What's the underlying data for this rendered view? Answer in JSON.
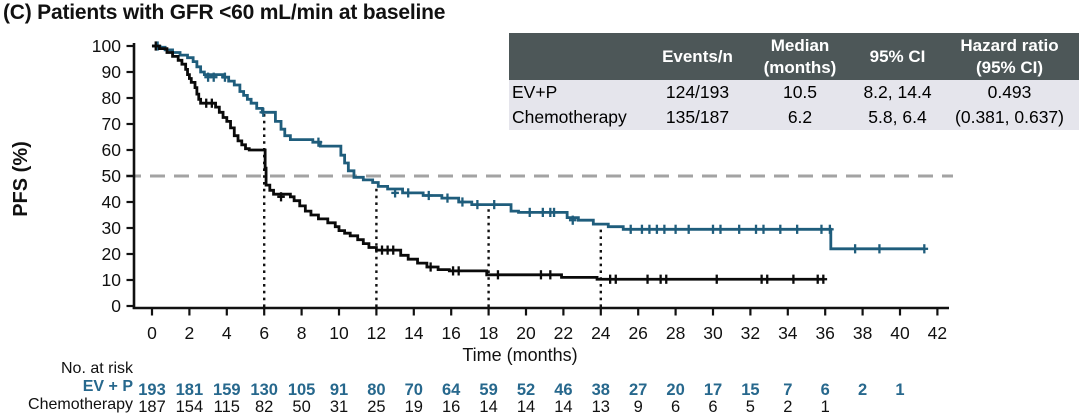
{
  "title": "(C) Patients with GFR <60 mL/min at baseline",
  "colors": {
    "evp_curve": "#1f5d7c",
    "evp_text": "#27688d",
    "chemo_curve": "#0a0a0a",
    "table_header_bg": "#4d5758",
    "table_row_bg": "#e5e5ec",
    "dashed_reference": "#a3a3a3",
    "axis": "#111111"
  },
  "stats_table": {
    "headers": {
      "label": "",
      "events": "Events/n",
      "median": "Median\n(months)",
      "ci": "95% CI",
      "hr": "Hazard ratio\n(95% CI)"
    },
    "rows": [
      {
        "label": "EV+P",
        "events": "124/193",
        "median": "10.5",
        "ci": "8.2, 14.4",
        "hr": "0.493"
      },
      {
        "label": "Chemotherapy",
        "events": "135/187",
        "median": "6.2",
        "ci": "5.8, 6.4",
        "hr": "(0.381, 0.637)"
      }
    ]
  },
  "chart_data": {
    "type": "line",
    "subtype": "kaplan-meier-step",
    "title": "(C) Patients with GFR <60 mL/min at baseline",
    "xlabel": "Time (months)",
    "ylabel": "PFS (%)",
    "xlim": [
      0,
      42
    ],
    "ylim": [
      0,
      100
    ],
    "xtick_step": 2,
    "ytick_step": 10,
    "grid": false,
    "reference_lines": {
      "horizontal_dashed_y": 50,
      "vertical_dotted": [
        [
          6,
          74.5
        ],
        [
          12,
          46
        ],
        [
          18,
          39
        ],
        [
          24,
          31.5
        ]
      ]
    },
    "series": [
      {
        "name": "EV+P",
        "color": "#1f5d7c",
        "median_months": 10.5,
        "steps": [
          [
            0,
            100
          ],
          [
            0.3,
            99.5
          ],
          [
            0.7,
            98.5
          ],
          [
            1.1,
            97.5
          ],
          [
            1.5,
            96.5
          ],
          [
            1.9,
            95.5
          ],
          [
            2.2,
            94
          ],
          [
            2.4,
            92
          ],
          [
            2.6,
            90
          ],
          [
            2.8,
            89
          ],
          [
            3.8,
            88
          ],
          [
            4.1,
            86.5
          ],
          [
            4.4,
            85
          ],
          [
            4.7,
            82.5
          ],
          [
            4.9,
            81
          ],
          [
            5.1,
            79.5
          ],
          [
            5.3,
            78
          ],
          [
            5.6,
            76
          ],
          [
            5.9,
            74.5
          ],
          [
            6.6,
            71
          ],
          [
            6.9,
            68
          ],
          [
            7.1,
            65.5
          ],
          [
            7.4,
            64
          ],
          [
            8.6,
            63
          ],
          [
            9.0,
            61.5
          ],
          [
            10.1,
            58
          ],
          [
            10.3,
            55
          ],
          [
            10.5,
            52
          ],
          [
            10.8,
            49.5
          ],
          [
            11.3,
            48.5
          ],
          [
            11.8,
            47.5
          ],
          [
            12.1,
            46
          ],
          [
            12.6,
            45
          ],
          [
            13.4,
            43.5
          ],
          [
            14.5,
            42.5
          ],
          [
            15.5,
            41.5
          ],
          [
            16.4,
            40
          ],
          [
            17.1,
            39
          ],
          [
            19.2,
            36.5
          ],
          [
            19.6,
            36
          ],
          [
            22.2,
            34
          ],
          [
            22.8,
            33
          ],
          [
            23.6,
            31.5
          ],
          [
            24.4,
            30.5
          ],
          [
            25.2,
            29.5
          ],
          [
            36.3,
            22
          ],
          [
            41.3,
            22
          ]
        ],
        "censors": [
          [
            0.3,
            100
          ],
          [
            3.0,
            88
          ],
          [
            3.3,
            88
          ],
          [
            3.9,
            88
          ],
          [
            5.95,
            74.5
          ],
          [
            8.9,
            63
          ],
          [
            13.0,
            43.5
          ],
          [
            13.7,
            43.5
          ],
          [
            14.8,
            42.5
          ],
          [
            15.8,
            41.5
          ],
          [
            16.6,
            40
          ],
          [
            17.4,
            39
          ],
          [
            18.3,
            39
          ],
          [
            20.2,
            36
          ],
          [
            20.9,
            36
          ],
          [
            21.3,
            36
          ],
          [
            21.5,
            36
          ],
          [
            22.5,
            33
          ],
          [
            25.6,
            29.5
          ],
          [
            26.2,
            29.5
          ],
          [
            26.6,
            29.5
          ],
          [
            27.0,
            29.5
          ],
          [
            27.4,
            29.5
          ],
          [
            28.0,
            29.5
          ],
          [
            28.7,
            29.5
          ],
          [
            30.0,
            29.5
          ],
          [
            30.4,
            29.5
          ],
          [
            31.4,
            29.5
          ],
          [
            32.3,
            29.5
          ],
          [
            32.7,
            29.5
          ],
          [
            33.6,
            29.5
          ],
          [
            34.5,
            29.5
          ],
          [
            35.8,
            29.5
          ],
          [
            36.25,
            29.5
          ],
          [
            37.6,
            22
          ],
          [
            38.9,
            22
          ],
          [
            41.3,
            22
          ]
        ]
      },
      {
        "name": "Chemotherapy",
        "color": "#0a0a0a",
        "median_months": 6.2,
        "steps": [
          [
            0,
            100
          ],
          [
            0.4,
            99
          ],
          [
            0.8,
            97.5
          ],
          [
            1.1,
            96
          ],
          [
            1.4,
            94.5
          ],
          [
            1.6,
            93
          ],
          [
            1.8,
            91
          ],
          [
            1.9,
            89
          ],
          [
            2.0,
            87.5
          ],
          [
            2.1,
            86
          ],
          [
            2.3,
            84
          ],
          [
            2.4,
            81.5
          ],
          [
            2.5,
            79.5
          ],
          [
            2.6,
            78
          ],
          [
            3.4,
            76.5
          ],
          [
            3.6,
            74.5
          ],
          [
            3.8,
            72.5
          ],
          [
            4.0,
            71
          ],
          [
            4.2,
            68.5
          ],
          [
            4.4,
            65.5
          ],
          [
            4.6,
            63.5
          ],
          [
            4.8,
            62
          ],
          [
            5.0,
            60.5
          ],
          [
            5.2,
            60
          ],
          [
            6.05,
            53
          ],
          [
            6.1,
            46.5
          ],
          [
            6.3,
            44.5
          ],
          [
            6.5,
            43
          ],
          [
            7.4,
            42
          ],
          [
            7.6,
            40.5
          ],
          [
            7.9,
            38.5
          ],
          [
            8.2,
            36.5
          ],
          [
            8.5,
            35
          ],
          [
            8.9,
            33.5
          ],
          [
            9.4,
            32
          ],
          [
            9.8,
            30.5
          ],
          [
            10.0,
            29
          ],
          [
            10.3,
            28
          ],
          [
            10.6,
            27
          ],
          [
            11.0,
            25.5
          ],
          [
            11.3,
            24
          ],
          [
            11.6,
            22.5
          ],
          [
            12.0,
            21.5
          ],
          [
            13.3,
            19.5
          ],
          [
            13.7,
            18
          ],
          [
            14.2,
            16.5
          ],
          [
            14.7,
            15
          ],
          [
            15.3,
            14
          ],
          [
            15.9,
            13.5
          ],
          [
            17.9,
            12
          ],
          [
            21.9,
            11
          ],
          [
            23.8,
            10.3
          ],
          [
            35.9,
            10.3
          ]
        ],
        "censors": [
          [
            0.2,
            100
          ],
          [
            2.9,
            78
          ],
          [
            3.2,
            78
          ],
          [
            6.9,
            42
          ],
          [
            12.3,
            21.5
          ],
          [
            12.6,
            21.5
          ],
          [
            12.9,
            21.5
          ],
          [
            14.9,
            15
          ],
          [
            16.1,
            13.5
          ],
          [
            16.4,
            13.5
          ],
          [
            18.5,
            12
          ],
          [
            20.8,
            12
          ],
          [
            21.3,
            12
          ],
          [
            24.5,
            10.3
          ],
          [
            24.8,
            10.3
          ],
          [
            26.5,
            10.3
          ],
          [
            27.2,
            10.3
          ],
          [
            27.5,
            10.3
          ],
          [
            30.2,
            10.3
          ],
          [
            32.6,
            10.3
          ],
          [
            32.9,
            10.3
          ],
          [
            34.3,
            10.3
          ],
          [
            35.6,
            10.3
          ],
          [
            35.9,
            10.3
          ]
        ]
      }
    ]
  },
  "at_risk": {
    "label": "No. at risk",
    "times": [
      0,
      2,
      4,
      6,
      8,
      10,
      12,
      14,
      16,
      18,
      20,
      22,
      24,
      26,
      28,
      30,
      32,
      34,
      36,
      38,
      40
    ],
    "rows": [
      {
        "name": "EV + P",
        "color": "#27688d",
        "bold": true,
        "values": [
          193,
          181,
          159,
          130,
          105,
          91,
          80,
          70,
          64,
          59,
          52,
          46,
          38,
          27,
          20,
          17,
          15,
          7,
          6,
          2,
          1
        ]
      },
      {
        "name": "Chemotherapy",
        "color": "#111111",
        "bold": false,
        "values": [
          187,
          154,
          115,
          82,
          50,
          31,
          25,
          19,
          16,
          14,
          14,
          14,
          13,
          9,
          6,
          6,
          5,
          2,
          1
        ]
      }
    ]
  }
}
